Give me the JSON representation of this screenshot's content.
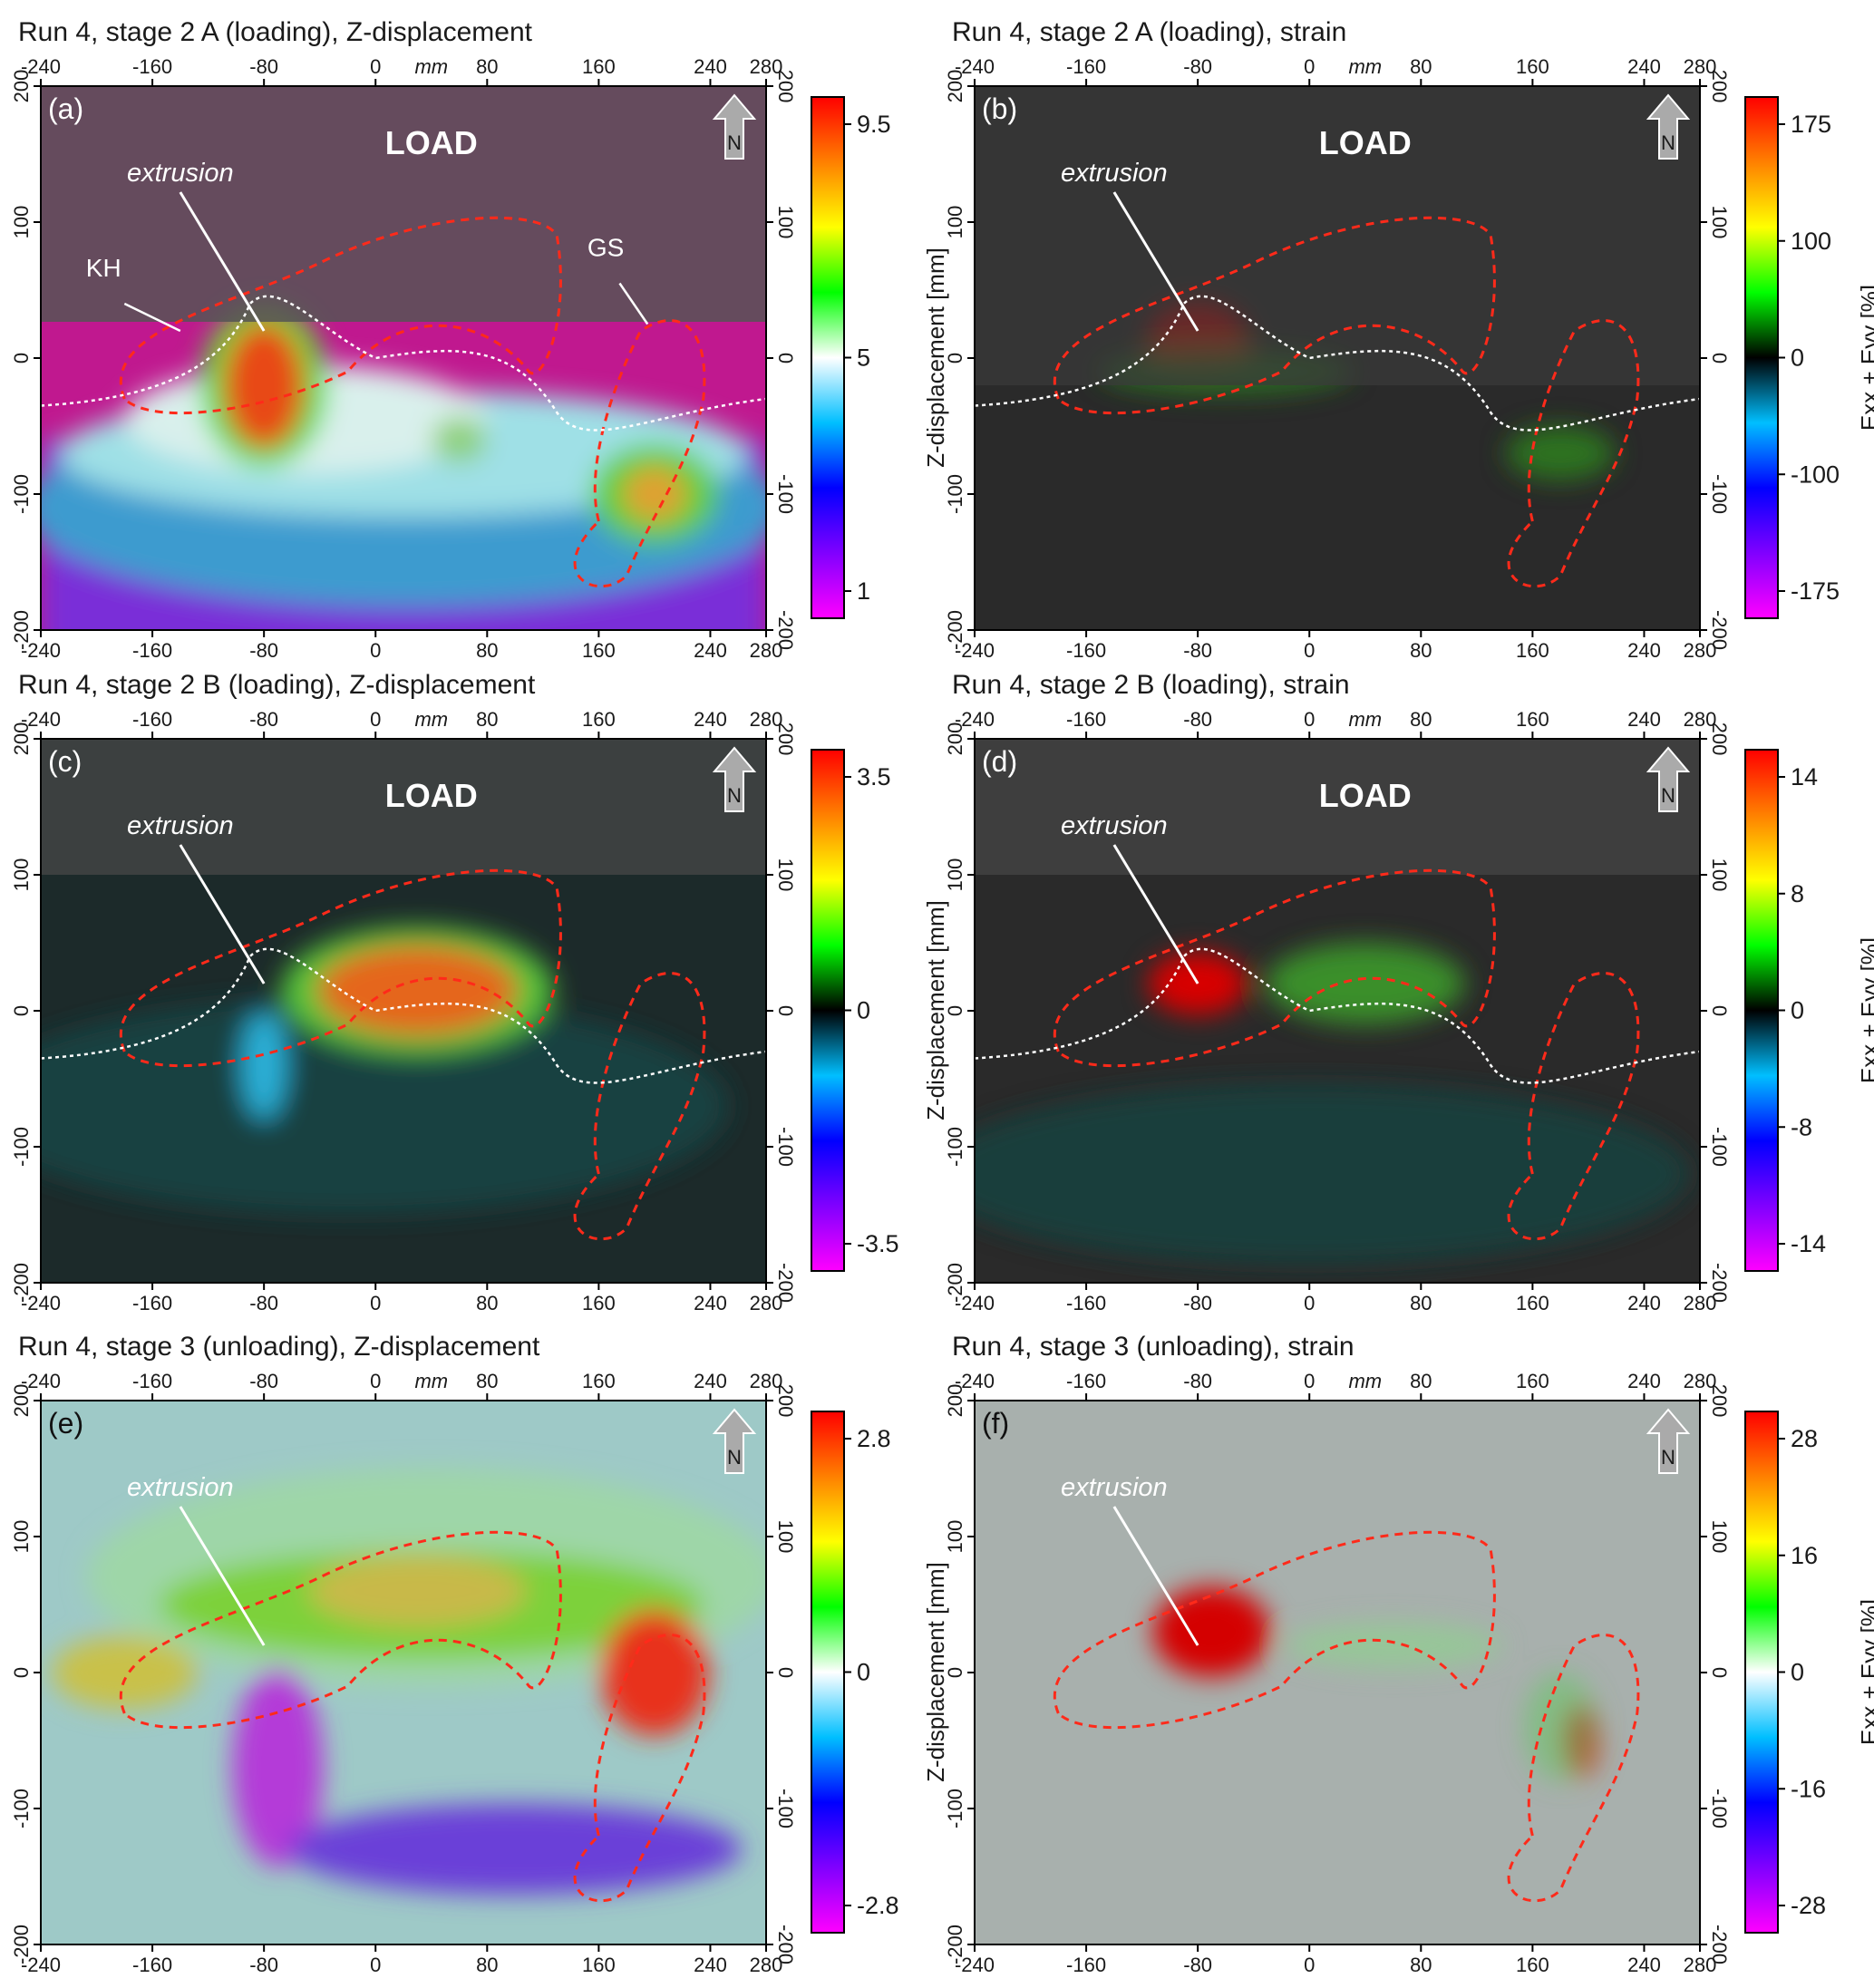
{
  "figure": {
    "panels": [
      {
        "id": "a",
        "label": "(a)",
        "title": "Run 4, stage 2 A (loading), Z-displacement",
        "load_label": "LOAD",
        "annotation": "extrusion",
        "extra_labels": [
          "KH",
          "GS"
        ],
        "colorbar": {
          "label": "Z-displacement [mm]",
          "ticks": [
            "9.5",
            "5",
            "1"
          ],
          "colors": [
            "#ff00ff",
            "#8000ff",
            "#0000ff",
            "#00bfff",
            "#ffffff",
            "#00ff00",
            "#ffff00",
            "#ff8000",
            "#ff0000"
          ]
        },
        "style": "zdisp-a"
      },
      {
        "id": "b",
        "label": "(b)",
        "title": "Run 4, stage 2 A (loading), strain",
        "load_label": "LOAD",
        "annotation": "extrusion",
        "extra_labels": [],
        "colorbar": {
          "label": "Exx + Eyy [%]",
          "ticks": [
            "175",
            "100",
            "0",
            "-100",
            "-175"
          ],
          "colors": [
            "#ff00ff",
            "#8000ff",
            "#0000ff",
            "#00bfff",
            "#000000",
            "#00ff00",
            "#ffff00",
            "#ff8000",
            "#ff0000"
          ]
        },
        "style": "strain"
      },
      {
        "id": "c",
        "label": "(c)",
        "title": "Run 4, stage 2 B (loading), Z-displacement",
        "load_label": "LOAD",
        "annotation": "extrusion",
        "extra_labels": [],
        "colorbar": {
          "label": "Z-displacement [mm]",
          "ticks": [
            "3.5",
            "0",
            "-3.5"
          ],
          "colors": [
            "#ff00ff",
            "#8000ff",
            "#0000ff",
            "#00bfff",
            "#000000",
            "#00ff00",
            "#ffff00",
            "#ff8000",
            "#ff0000"
          ]
        },
        "style": "zdisp-c"
      },
      {
        "id": "d",
        "label": "(d)",
        "title": "Run 4, stage 2 B (loading), strain",
        "load_label": "LOAD",
        "annotation": "extrusion",
        "extra_labels": [],
        "colorbar": {
          "label": "Exx + Eyy [%]",
          "ticks": [
            "14",
            "8",
            "0",
            "-8",
            "-14"
          ],
          "colors": [
            "#ff00ff",
            "#8000ff",
            "#0000ff",
            "#00bfff",
            "#000000",
            "#00ff00",
            "#ffff00",
            "#ff8000",
            "#ff0000"
          ]
        },
        "style": "strain-d"
      },
      {
        "id": "e",
        "label": "(e)",
        "title": "Run 4, stage 3 (unloading), Z-displacement",
        "load_label": "",
        "annotation": "extrusion",
        "extra_labels": [],
        "colorbar": {
          "label": "Z-displacement [mm]",
          "ticks": [
            "2.8",
            "0",
            "-2.8"
          ],
          "colors": [
            "#ff00ff",
            "#8000ff",
            "#0000ff",
            "#00bfff",
            "#ffffff",
            "#00ff00",
            "#ffff00",
            "#ff8000",
            "#ff0000"
          ]
        },
        "style": "zdisp-e"
      },
      {
        "id": "f",
        "label": "(f)",
        "title": "Run 4, stage 3 (unloading), strain",
        "load_label": "",
        "annotation": "extrusion",
        "extra_labels": [],
        "colorbar": {
          "label": "Exx + Eyy [%]",
          "ticks": [
            "28",
            "16",
            "0",
            "-16",
            "-28"
          ],
          "colors": [
            "#ff00ff",
            "#8000ff",
            "#0000ff",
            "#00bfff",
            "#ffffff",
            "#00ff00",
            "#ffff00",
            "#ff8000",
            "#ff0000"
          ]
        },
        "style": "strain-f"
      }
    ],
    "axes": {
      "x_ticks": [
        "-240",
        "-160",
        "-80",
        "0",
        "80",
        "160",
        "240",
        "280"
      ],
      "x_top_ticks": [
        "-240",
        "-160",
        "-80",
        "0",
        "80",
        "160",
        "240",
        "280"
      ],
      "x_unit": "mm",
      "y_ticks": [
        "200",
        "100",
        "0",
        "-100",
        "-200"
      ]
    },
    "north_label": "N"
  }
}
